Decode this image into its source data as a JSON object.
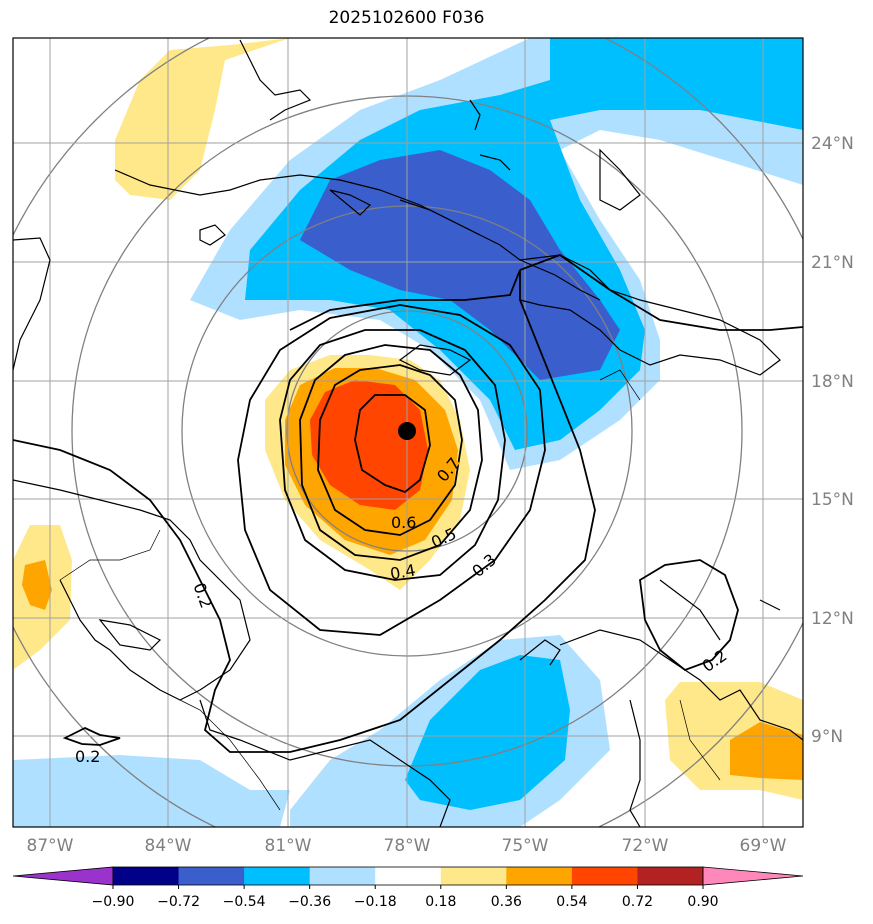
{
  "title": "2025102600 F036",
  "lat_labels": [
    "24°N",
    "21°N",
    "18°N",
    "15°N",
    "12°N",
    "9°N"
  ],
  "lon_labels": [
    "87°W",
    "84°W",
    "81°W",
    "78°W",
    "75°W",
    "72°W",
    "69°W"
  ],
  "contour_labels": [
    "0.7",
    "0.6",
    "0.5",
    "0.4",
    "0.3",
    "0.2",
    "0.2",
    "0.2"
  ],
  "colorbar": {
    "ticks": [
      "−0.90",
      "−0.72",
      "−0.54",
      "−0.36",
      "−0.18",
      "0.18",
      "0.36",
      "0.54",
      "0.72",
      "0.90"
    ],
    "colors": [
      "#9933cc",
      "#000088",
      "#3a5fcd",
      "#00bfff",
      "#b0e0ff",
      "#ffffff",
      "#ffe88a",
      "#ffa500",
      "#ff4500",
      "#b22222",
      "#ff88bb"
    ]
  },
  "storm_center": {
    "lat": 16.7,
    "lon": -78.0
  }
}
